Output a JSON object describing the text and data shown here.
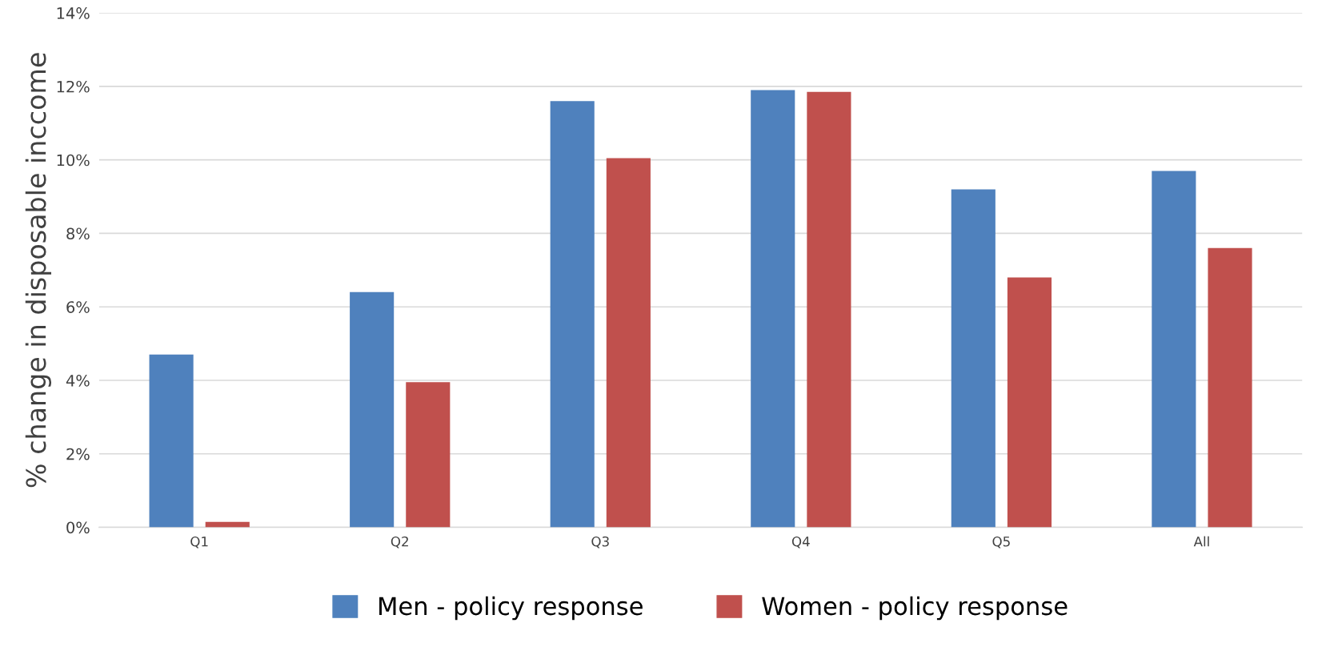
{
  "chart_data": {
    "type": "bar",
    "ylabel": "% change in disposable inccome",
    "categories": [
      "Q1",
      "Q2",
      "Q3",
      "Q4",
      "Q5",
      "All"
    ],
    "series": [
      {
        "name": "Men - policy response",
        "color": "#4f81bd",
        "values": [
          4.7,
          6.4,
          11.6,
          11.9,
          9.2,
          9.7
        ]
      },
      {
        "name": "Women - policy response",
        "color": "#c0504d",
        "values": [
          0.15,
          3.95,
          10.05,
          11.85,
          6.8,
          7.6
        ]
      }
    ],
    "ylim": [
      0,
      14
    ],
    "yticks": [
      {
        "value": 0,
        "label": "0%"
      },
      {
        "value": 2,
        "label": "2%"
      },
      {
        "value": 4,
        "label": "4%"
      },
      {
        "value": 6,
        "label": "6%"
      },
      {
        "value": 8,
        "label": "8%"
      },
      {
        "value": 10,
        "label": "10%"
      },
      {
        "value": 12,
        "label": "12%"
      },
      {
        "value": 14,
        "label": "14%"
      }
    ],
    "grid": "y",
    "legend": "bottom"
  }
}
